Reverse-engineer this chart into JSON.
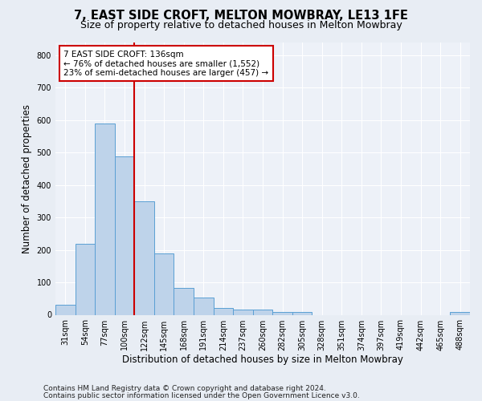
{
  "title": "7, EAST SIDE CROFT, MELTON MOWBRAY, LE13 1FE",
  "subtitle": "Size of property relative to detached houses in Melton Mowbray",
  "xlabel": "Distribution of detached houses by size in Melton Mowbray",
  "ylabel": "Number of detached properties",
  "categories": [
    "31sqm",
    "54sqm",
    "77sqm",
    "100sqm",
    "122sqm",
    "145sqm",
    "168sqm",
    "191sqm",
    "214sqm",
    "237sqm",
    "260sqm",
    "282sqm",
    "305sqm",
    "328sqm",
    "351sqm",
    "374sqm",
    "397sqm",
    "419sqm",
    "442sqm",
    "465sqm",
    "488sqm"
  ],
  "values": [
    30,
    218,
    588,
    488,
    350,
    190,
    83,
    53,
    20,
    15,
    15,
    8,
    8,
    0,
    0,
    0,
    0,
    0,
    0,
    0,
    8
  ],
  "bar_color": "#bed3ea",
  "bar_edge_color": "#5a9fd4",
  "reference_line_x": 3.5,
  "reference_line_color": "#cc0000",
  "annotation_text": "7 EAST SIDE CROFT: 136sqm\n← 76% of detached houses are smaller (1,552)\n23% of semi-detached houses are larger (457) →",
  "annotation_box_color": "#ffffff",
  "annotation_box_edge_color": "#cc0000",
  "ylim": [
    0,
    840
  ],
  "yticks": [
    0,
    100,
    200,
    300,
    400,
    500,
    600,
    700,
    800
  ],
  "bg_color": "#e8edf4",
  "plot_bg_color": "#edf1f8",
  "grid_color": "#ffffff",
  "footer_line1": "Contains HM Land Registry data © Crown copyright and database right 2024.",
  "footer_line2": "Contains public sector information licensed under the Open Government Licence v3.0.",
  "title_fontsize": 10.5,
  "subtitle_fontsize": 9,
  "xlabel_fontsize": 8.5,
  "ylabel_fontsize": 8.5,
  "tick_fontsize": 7,
  "annotation_fontsize": 7.5,
  "footer_fontsize": 6.5
}
